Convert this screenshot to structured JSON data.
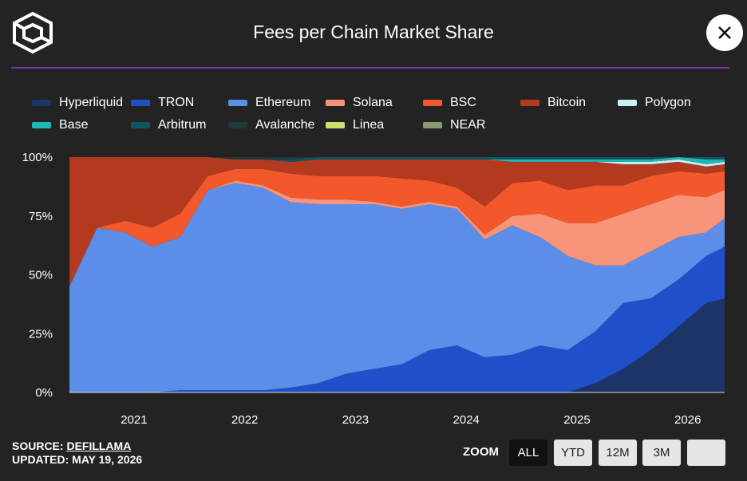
{
  "header": {
    "title": "Fees per Chain Market Share",
    "close_icon": "close-icon",
    "logo_icon": "cube-logo-icon"
  },
  "legend": [
    {
      "name": "Hyperliquid",
      "color": "#1c3468"
    },
    {
      "name": "TRON",
      "color": "#1f4fc9"
    },
    {
      "name": "Ethereum",
      "color": "#5c8de8"
    },
    {
      "name": "Solana",
      "color": "#f79479"
    },
    {
      "name": "BSC",
      "color": "#f2582c"
    },
    {
      "name": "Bitcoin",
      "color": "#b33a1e"
    },
    {
      "name": "Polygon",
      "color": "#c9f1f4"
    },
    {
      "name": "Base",
      "color": "#1fb6b8"
    },
    {
      "name": "Arbitrum",
      "color": "#0f5566"
    },
    {
      "name": "Avalanche",
      "color": "#1e3a3a"
    },
    {
      "name": "Linea",
      "color": "#c8e36a"
    },
    {
      "name": "NEAR",
      "color": "#8a9a72"
    }
  ],
  "chart_data": {
    "type": "area",
    "title": "Fees per Chain Market Share",
    "stacking": "percent",
    "x": [
      "2020-06",
      "2020-09",
      "2020-12",
      "2021-03",
      "2021-06",
      "2021-09",
      "2021-12",
      "2022-03",
      "2022-06",
      "2022-09",
      "2022-12",
      "2023-03",
      "2023-06",
      "2023-09",
      "2023-12",
      "2024-03",
      "2024-06",
      "2024-09",
      "2024-12",
      "2025-03",
      "2025-06",
      "2025-09",
      "2025-12",
      "2026-03",
      "2026-05"
    ],
    "series": [
      {
        "name": "Hyperliquid",
        "values": [
          0,
          0,
          0,
          0,
          0,
          0,
          0,
          0,
          0,
          0,
          0,
          0,
          0,
          0,
          0,
          0,
          0,
          0,
          0,
          4,
          10,
          18,
          28,
          38,
          40
        ]
      },
      {
        "name": "TRON",
        "values": [
          0,
          0,
          0,
          0,
          1,
          1,
          1,
          1,
          2,
          4,
          8,
          10,
          12,
          18,
          20,
          15,
          16,
          20,
          18,
          22,
          28,
          22,
          20,
          20,
          22
        ]
      },
      {
        "name": "Ethereum",
        "values": [
          45,
          70,
          68,
          62,
          65,
          85,
          88,
          86,
          78,
          76,
          72,
          70,
          66,
          62,
          58,
          50,
          55,
          46,
          40,
          28,
          16,
          20,
          18,
          10,
          12
        ]
      },
      {
        "name": "Solana",
        "values": [
          0,
          0,
          0,
          0,
          0,
          0,
          1,
          1,
          2,
          2,
          2,
          1,
          1,
          1,
          1,
          2,
          4,
          10,
          14,
          18,
          22,
          20,
          18,
          15,
          12
        ]
      },
      {
        "name": "BSC",
        "values": [
          0,
          0,
          5,
          8,
          10,
          6,
          5,
          7,
          10,
          10,
          10,
          11,
          12,
          9,
          8,
          12,
          14,
          14,
          14,
          16,
          12,
          12,
          10,
          10,
          8
        ]
      },
      {
        "name": "Bitcoin",
        "values": [
          55,
          30,
          27,
          30,
          24,
          8,
          4,
          4,
          5,
          7,
          7,
          7,
          8,
          9,
          12,
          20,
          9,
          8,
          12,
          10,
          9,
          5,
          4,
          3,
          3
        ]
      },
      {
        "name": "Polygon",
        "values": [
          0,
          0,
          0,
          0,
          0,
          0,
          0,
          0,
          0,
          0,
          0,
          0,
          0,
          0,
          0,
          0,
          0,
          0,
          0,
          0,
          1,
          1,
          1,
          1,
          1
        ]
      },
      {
        "name": "Base",
        "values": [
          0,
          0,
          0,
          0,
          0,
          0,
          0,
          0,
          0,
          0,
          0,
          0,
          0,
          0,
          0,
          0,
          1,
          1,
          1,
          1,
          1,
          1,
          1,
          2,
          1
        ]
      },
      {
        "name": "Arbitrum",
        "values": [
          0,
          0,
          0,
          0,
          0,
          0,
          0,
          0,
          1,
          1,
          1,
          1,
          1,
          1,
          1,
          1,
          1,
          1,
          1,
          1,
          1,
          1,
          0,
          1,
          1
        ]
      },
      {
        "name": "Avalanche",
        "values": [
          0,
          0,
          0,
          0,
          0,
          0,
          1,
          1,
          1,
          0,
          0,
          0,
          0,
          0,
          0,
          0,
          0,
          0,
          0,
          0,
          0,
          0,
          0,
          0,
          0
        ]
      },
      {
        "name": "Linea",
        "values": [
          0,
          0,
          0,
          0,
          0,
          0,
          0,
          0,
          0,
          0,
          0,
          0,
          0,
          0,
          0,
          0,
          0,
          0,
          0,
          0,
          0,
          0,
          0,
          0,
          0
        ]
      },
      {
        "name": "NEAR",
        "values": [
          0,
          0,
          0,
          0,
          0,
          0,
          0,
          0,
          0,
          0,
          0,
          0,
          0,
          0,
          0,
          0,
          0,
          0,
          0,
          0,
          0,
          0,
          0,
          0,
          0
        ]
      }
    ],
    "y_ticks": [
      "0%",
      "25%",
      "50%",
      "75%",
      "100%"
    ],
    "x_ticks": [
      "2021",
      "2022",
      "2023",
      "2024",
      "2025",
      "2026"
    ],
    "ylim": [
      0,
      100
    ],
    "legend_position": "top"
  },
  "footer": {
    "source_label": "SOURCE: ",
    "source_link": "DEFILLAMA",
    "updated": "UPDATED: MAY 19, 2026"
  },
  "zoom": {
    "label": "ZOOM",
    "buttons": [
      "ALL",
      "YTD",
      "12M",
      "3M",
      ""
    ],
    "active": "ALL"
  }
}
